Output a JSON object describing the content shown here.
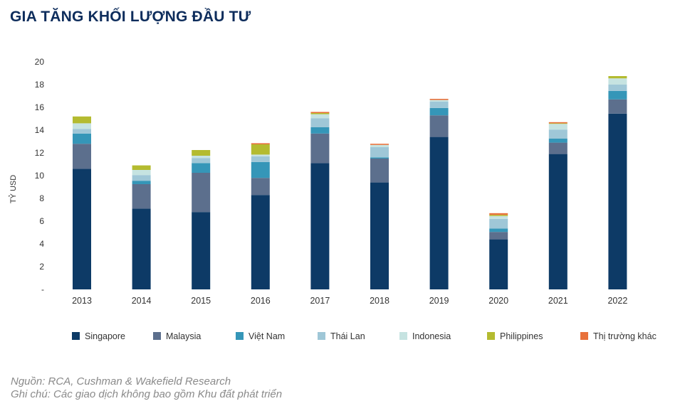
{
  "chart_data": {
    "type": "bar",
    "stacked": true,
    "title": "GIA TĂNG KHỐI LƯỢNG ĐẦU TƯ",
    "ylabel": "TỶ USD",
    "xlabel": "",
    "ylim": [
      0,
      20
    ],
    "yticks": [
      "-",
      "2",
      "4",
      "6",
      "8",
      "10",
      "12",
      "14",
      "16",
      "18",
      "20"
    ],
    "grid": false,
    "legend_position": "bottom",
    "categories": [
      "2013",
      "2014",
      "2015",
      "2016",
      "2017",
      "2018",
      "2019",
      "2020",
      "2021",
      "2022"
    ],
    "series": [
      {
        "name": "Singapore",
        "color": "#0d3a66",
        "values": [
          10.6,
          7.1,
          6.8,
          8.3,
          11.1,
          9.4,
          13.4,
          4.4,
          11.9,
          15.45
        ]
      },
      {
        "name": "Malaysia",
        "color": "#5c6f8d",
        "values": [
          2.2,
          2.15,
          3.45,
          1.5,
          2.6,
          2.1,
          1.9,
          0.65,
          1.0,
          1.25
        ]
      },
      {
        "name": "Việt Nam",
        "color": "#3596b8",
        "values": [
          0.9,
          0.3,
          0.85,
          1.4,
          0.55,
          0.1,
          0.65,
          0.3,
          0.35,
          0.75
        ]
      },
      {
        "name": "Thái Lan",
        "color": "#9fc7d7",
        "values": [
          0.4,
          0.5,
          0.45,
          0.5,
          0.8,
          0.9,
          0.55,
          0.85,
          0.8,
          0.55
        ]
      },
      {
        "name": "Indonesia",
        "color": "#c6e3e1",
        "values": [
          0.5,
          0.45,
          0.2,
          0.15,
          0.35,
          0.2,
          0.15,
          0.25,
          0.5,
          0.55
        ]
      },
      {
        "name": "Philippines",
        "color": "#b4bb30",
        "values": [
          0.6,
          0.4,
          0.5,
          0.9,
          0.1,
          0.0,
          0.0,
          0.1,
          0.05,
          0.2
        ]
      },
      {
        "name": "Thị trường khác",
        "color": "#e8713b",
        "values": [
          0.0,
          0.0,
          0.0,
          0.1,
          0.1,
          0.1,
          0.1,
          0.15,
          0.1,
          0.0
        ]
      }
    ]
  },
  "footnotes": {
    "source": "Nguồn: RCA, Cushman & Wakefield Research",
    "note": "Ghi chú: Các giao dịch không bao gồm Khu đất phát triển"
  }
}
